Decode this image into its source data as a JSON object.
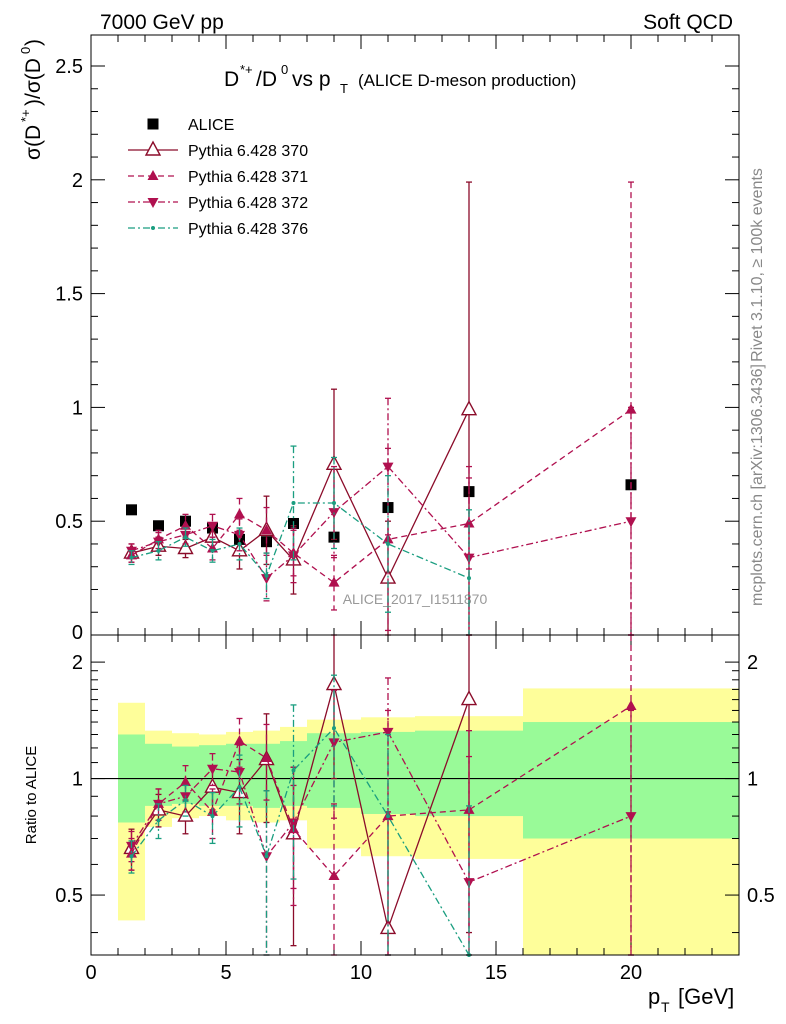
{
  "header": {
    "left": "7000 GeV pp",
    "right": "Soft QCD"
  },
  "side_labels": {
    "rivet": "Rivet 3.1.10, ≥ 100k events",
    "mcplots": "mcplots.cern.ch [arXiv:1306.3436]"
  },
  "chart_data": [
    {
      "type": "scatter",
      "panel": "main",
      "title": "D*+/D0 vs pT (ALICE D-meson production)",
      "ylabel": "σ(D*+)/σ(D0)",
      "xlim": [
        0,
        24
      ],
      "ylim": [
        0,
        2.5
      ],
      "yticks": [
        0.5,
        1,
        1.5,
        2,
        2.5
      ],
      "watermark": "ALICE_2017_I1511870",
      "legend_position": "top-left",
      "series": [
        {
          "name": "ALICE",
          "color": "#000000",
          "marker": "square",
          "x": [
            1.5,
            2.5,
            3.5,
            4.5,
            5.5,
            6.5,
            7.5,
            9,
            11,
            14,
            20
          ],
          "y": [
            0.55,
            0.48,
            0.5,
            0.47,
            0.42,
            0.41,
            0.49,
            0.43,
            0.56,
            0.63,
            0.66
          ]
        },
        {
          "name": "Pythia 6.428 370",
          "color": "#8b0c2a",
          "marker": "triangle-up-open",
          "line": "solid",
          "x": [
            1.5,
            2.5,
            3.5,
            4.5,
            5.5,
            6.5,
            7.5,
            9,
            11,
            14
          ],
          "y": [
            0.36,
            0.39,
            0.38,
            0.43,
            0.37,
            0.46,
            0.33,
            0.75,
            0.25,
            0.99
          ],
          "err": [
            0.04,
            0.04,
            0.04,
            0.05,
            0.08,
            0.15,
            0.15,
            0.33,
            0.25,
            1.0
          ]
        },
        {
          "name": "Pythia 6.428 371",
          "color": "#b0104f",
          "marker": "triangle-up",
          "line": "dashed",
          "x": [
            1.5,
            2.5,
            3.5,
            4.5,
            5.5,
            6.5,
            7.5,
            9,
            11,
            14,
            20
          ],
          "y": [
            0.35,
            0.42,
            0.48,
            0.38,
            0.53,
            0.46,
            0.36,
            0.23,
            0.42,
            0.49,
            0.99
          ],
          "err": [
            0.03,
            0.04,
            0.05,
            0.05,
            0.07,
            0.1,
            0.1,
            0.12,
            0.4,
            0.2,
            1.0
          ]
        },
        {
          "name": "Pythia 6.428 372",
          "color": "#b0104f",
          "marker": "triangle-down",
          "line": "dashdot",
          "x": [
            1.5,
            2.5,
            3.5,
            4.5,
            5.5,
            6.5,
            7.5,
            9,
            11,
            14,
            20
          ],
          "y": [
            0.37,
            0.41,
            0.44,
            0.48,
            0.44,
            0.25,
            0.35,
            0.54,
            0.74,
            0.34,
            0.5
          ],
          "err": [
            0.03,
            0.04,
            0.04,
            0.05,
            0.07,
            0.1,
            0.12,
            0.2,
            0.3,
            0.4,
            0.5
          ]
        },
        {
          "name": "Pythia 6.428 376",
          "color": "#1a9e80",
          "marker": "dot",
          "line": "dashdot",
          "x": [
            1.5,
            2.5,
            3.5,
            4.5,
            5.5,
            6.5,
            7.5,
            9,
            11,
            14
          ],
          "y": [
            0.34,
            0.37,
            0.43,
            0.37,
            0.4,
            0.26,
            0.58,
            0.58,
            0.4,
            0.25
          ],
          "err": [
            0.03,
            0.04,
            0.04,
            0.05,
            0.07,
            0.1,
            0.25,
            0.2,
            0.3,
            0.3
          ]
        }
      ]
    },
    {
      "type": "scatter",
      "panel": "ratio",
      "ylabel": "Ratio to ALICE",
      "xlabel": "pT [GeV]",
      "xlim": [
        0,
        24
      ],
      "ylim": [
        0.35,
        2.35
      ],
      "yticks": [
        0.5,
        1,
        2
      ],
      "xticks": [
        0,
        5,
        10,
        15,
        20
      ],
      "reference_line": 1,
      "bands": {
        "bins": [
          [
            1,
            2
          ],
          [
            2,
            3
          ],
          [
            3,
            4
          ],
          [
            4,
            5
          ],
          [
            5,
            6
          ],
          [
            6,
            7
          ],
          [
            7,
            8
          ],
          [
            8,
            10
          ],
          [
            10,
            12
          ],
          [
            12,
            16
          ],
          [
            16,
            24
          ]
        ],
        "green": [
          [
            0.77,
            1.3
          ],
          [
            0.85,
            1.23
          ],
          [
            0.86,
            1.21
          ],
          [
            0.85,
            1.22
          ],
          [
            0.85,
            1.23
          ],
          [
            0.84,
            1.23
          ],
          [
            0.85,
            1.25
          ],
          [
            0.84,
            1.31
          ],
          [
            0.81,
            1.32
          ],
          [
            0.8,
            1.33
          ],
          [
            0.7,
            1.4
          ]
        ],
        "yellow": [
          [
            0.43,
            1.57
          ],
          [
            0.75,
            1.33
          ],
          [
            0.79,
            1.31
          ],
          [
            0.8,
            1.3
          ],
          [
            0.78,
            1.32
          ],
          [
            0.77,
            1.33
          ],
          [
            0.78,
            1.36
          ],
          [
            0.66,
            1.42
          ],
          [
            0.63,
            1.44
          ],
          [
            0.62,
            1.45
          ],
          [
            0.35,
            1.71
          ]
        ],
        "green_color": "#99fa98",
        "yellow_color": "#fefe9a"
      },
      "series": [
        {
          "name": "Pythia 6.428 370",
          "x": [
            1.5,
            2.5,
            3.5,
            4.5,
            5.5,
            6.5,
            7.5,
            9,
            11,
            14
          ],
          "y": [
            0.66,
            0.83,
            0.8,
            0.95,
            0.92,
            1.12,
            0.72,
            1.75,
            0.41,
            1.6
          ],
          "err": [
            0.08,
            0.08,
            0.08,
            0.12,
            0.2,
            0.35,
            0.35,
            0.75,
            0.41,
            1.2
          ]
        },
        {
          "name": "Pythia 6.428 371",
          "x": [
            1.5,
            2.5,
            3.5,
            4.5,
            5.5,
            6.5,
            7.5,
            9,
            11,
            14,
            20
          ],
          "y": [
            0.64,
            0.86,
            0.98,
            0.82,
            1.25,
            1.13,
            0.74,
            0.56,
            0.8,
            0.83,
            1.54
          ],
          "err": [
            0.06,
            0.08,
            0.1,
            0.12,
            0.18,
            0.25,
            0.22,
            0.3,
            0.7,
            0.5,
            1.5
          ]
        },
        {
          "name": "Pythia 6.428 372",
          "x": [
            1.5,
            2.5,
            3.5,
            4.5,
            5.5,
            6.5,
            7.5,
            9,
            11,
            14,
            20
          ],
          "y": [
            0.67,
            0.86,
            0.9,
            1.06,
            1.04,
            0.63,
            0.77,
            1.24,
            1.32,
            0.54,
            0.8
          ],
          "err": [
            0.06,
            0.08,
            0.08,
            0.1,
            0.18,
            0.3,
            0.3,
            0.45,
            0.5,
            0.6,
            0.7
          ]
        },
        {
          "name": "Pythia 6.428 376",
          "x": [
            1.5,
            2.5,
            3.5,
            4.5,
            5.5,
            6.5,
            7.5,
            9,
            11,
            14
          ],
          "y": [
            0.63,
            0.78,
            0.88,
            0.8,
            0.95,
            0.63,
            1.05,
            1.35,
            0.8,
            0.35
          ],
          "err": [
            0.06,
            0.08,
            0.08,
            0.12,
            0.2,
            0.3,
            0.5,
            0.5,
            0.5,
            0.5
          ]
        }
      ]
    }
  ]
}
